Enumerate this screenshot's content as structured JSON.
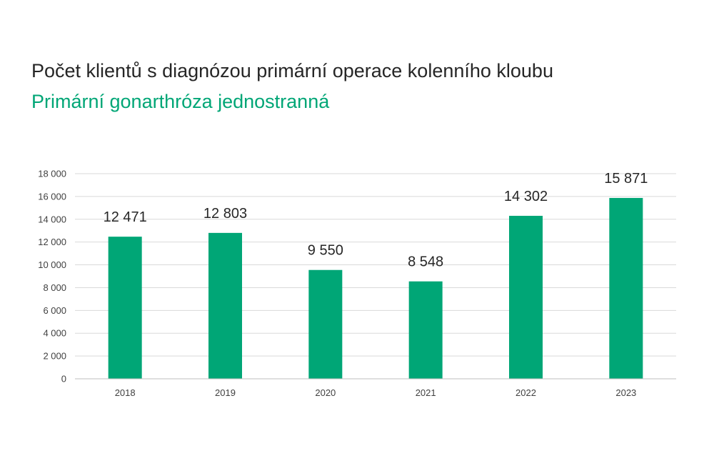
{
  "header": {
    "title": "Počet klientů s diagnózou primární operace kolenního kloubu",
    "subtitle": "Primární gonarthróza jednostranná"
  },
  "chart_data": {
    "type": "bar",
    "categories": [
      "2018",
      "2019",
      "2020",
      "2021",
      "2022",
      "2023"
    ],
    "values": [
      12471,
      12803,
      9550,
      8548,
      14302,
      15871
    ],
    "data_labels": [
      "12 471",
      "12 803",
      "9 550",
      "8 548",
      "14 302",
      "15 871"
    ],
    "yticks": [
      "0",
      "2 000",
      "4 000",
      "6 000",
      "8 000",
      "10 000",
      "12 000",
      "14 000",
      "16 000",
      "18 000"
    ],
    "ylim": [
      0,
      18000
    ],
    "grid": true,
    "legend": "none",
    "bar_color": "#00a676",
    "grid_color": "#d9d9d9"
  }
}
